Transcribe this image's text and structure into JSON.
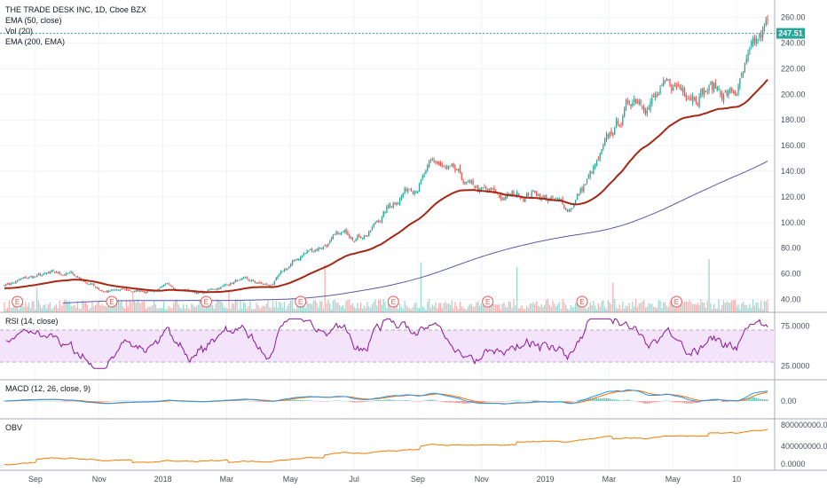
{
  "main_panel": {
    "title": "THE TRADE DESK INC, 1D, Cboe BZX",
    "indicators": [
      "EMA (50, close)",
      "Vol (20)",
      "EMA (200, EMA)"
    ],
    "last_price": "247.51"
  },
  "rsi_panel": {
    "title": "RSI (14, close)"
  },
  "macd_panel": {
    "title": "MACD (12, 26, close, 9)"
  },
  "obv_panel": {
    "title": "OBV"
  },
  "colors": {
    "up": "#26a69a",
    "down": "#ef5350",
    "ema50": "#a52714",
    "ema200": "#5a5aa8",
    "rsi": "#8e1599",
    "rsi_band": "#f3e4fb",
    "macd": "#2196f3",
    "signal": "#ff6d00",
    "obv": "#f57c00",
    "price_line": "#26a69a"
  },
  "chart_data": [
    {
      "type": "candlestick",
      "title": "THE TRADE DESK INC, 1D, Cboe BZX",
      "y_axis_ticks": [
        "260.00",
        "240.00",
        "220.00",
        "200.00",
        "180.00",
        "160.00",
        "140.00",
        "120.00",
        "100.00",
        "80.00",
        "60.00",
        "40.00"
      ],
      "ylim": [
        30,
        268
      ],
      "x_axis_labels": [
        "Sep",
        "Nov",
        "2018",
        "Mar",
        "May",
        "Jul",
        "Sep",
        "Nov",
        "2019",
        "Mar",
        "May",
        "10"
      ],
      "close_by_period": [
        {
          "period": "2017-08",
          "close": 52
        },
        {
          "period": "2017-09",
          "close": 58
        },
        {
          "period": "2017-10",
          "close": 60
        },
        {
          "period": "2017-11",
          "close": 47
        },
        {
          "period": "2017-12",
          "close": 46
        },
        {
          "period": "2018-01",
          "close": 50
        },
        {
          "period": "2018-02",
          "close": 45
        },
        {
          "period": "2018-03",
          "close": 55
        },
        {
          "period": "2018-04",
          "close": 50
        },
        {
          "period": "2018-05",
          "close": 75
        },
        {
          "period": "2018-06",
          "close": 88
        },
        {
          "period": "2018-07",
          "close": 94
        },
        {
          "period": "2018-08",
          "close": 125
        },
        {
          "period": "2018-09",
          "close": 145
        },
        {
          "period": "2018-10",
          "close": 125
        },
        {
          "period": "2018-11",
          "close": 118
        },
        {
          "period": "2018-12",
          "close": 125
        },
        {
          "period": "2019-01",
          "close": 110
        },
        {
          "period": "2019-02",
          "close": 150
        },
        {
          "period": "2019-03",
          "close": 200
        },
        {
          "period": "2019-04",
          "close": 200
        },
        {
          "period": "2019-05",
          "close": 210
        },
        {
          "period": "2019-06",
          "close": 200
        },
        {
          "period": "2019-06-10",
          "close": 247.51
        }
      ],
      "series": [
        {
          "name": "EMA (50, close)",
          "end_value": 203
        },
        {
          "name": "EMA (200, EMA)",
          "end_value": 148
        }
      ],
      "last_price_label": "247.51",
      "earnings_markers": 8,
      "earnings_marker_label": "E"
    },
    {
      "type": "line",
      "title": "RSI (14, close)",
      "y_axis_ticks": [
        "75.0000",
        "25.0000"
      ],
      "ylim": [
        10,
        90
      ],
      "band": [
        30,
        70
      ]
    },
    {
      "type": "line",
      "title": "MACD (12, 26, close, 9)",
      "y_axis_ticks": [
        "0.00"
      ]
    },
    {
      "type": "line",
      "title": "OBV",
      "y_axis_ticks": [
        "800000000.0000",
        "400000000.0000",
        "0.0000"
      ]
    }
  ]
}
